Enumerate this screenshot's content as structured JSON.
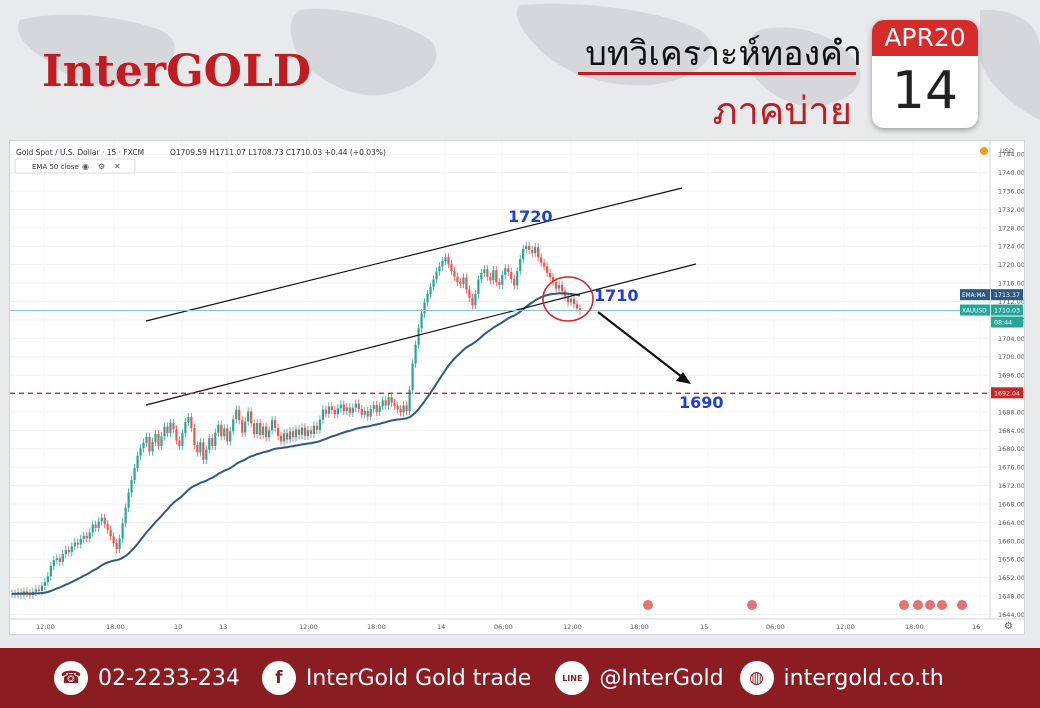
{
  "header": {
    "logo": "InterGOLD",
    "title": "บทวิเคราะห์ทองคำ",
    "subtitle": "ภาคบ่าย",
    "calendar_month": "APR20",
    "calendar_day": "14"
  },
  "chart_header": {
    "symbol": "Gold Spot / U.S. Dollar · 15 · FXCM",
    "ohlc": "O1709.59 H1711.07 L1708.73 C1710.03 +0.44 (+0.03%)",
    "indicator": "EMA 50 close"
  },
  "annotations": {
    "high_label": "1720",
    "mid_label": "1710",
    "target_label": "1690"
  },
  "chart_data": {
    "type": "candlestick",
    "symbol": "XAUUSD",
    "timeframe": "15",
    "price_axis": {
      "ticks": [
        "1744.00",
        "1740.00",
        "1736.00",
        "1732.00",
        "1728.00",
        "1724.00",
        "1720.00",
        "1716.00",
        "1712.00",
        "1708.00",
        "1704.00",
        "1700.00",
        "1696.00",
        "1692.00",
        "1688.00",
        "1684.00",
        "1680.00",
        "1676.00",
        "1672.00",
        "1668.00",
        "1664.00",
        "1660.00",
        "1656.00",
        "1652.00",
        "1648.00",
        "1644.00"
      ],
      "unit": "USD",
      "ylim": [
        1643,
        1746
      ]
    },
    "time_axis": {
      "ticks": [
        "12:00",
        "18:00",
        "10",
        "13",
        "12:00",
        "18:00",
        "14",
        "06:00",
        "12:00",
        "18:00",
        "15",
        "06:00",
        "12:00",
        "18:00",
        "16"
      ]
    },
    "price_tags": [
      {
        "label": "EMA:MA",
        "value": "1713.37",
        "color": "#2c5a86"
      },
      {
        "label": "XAUUSD",
        "value": "1710.03",
        "color": "#26a69a"
      },
      {
        "label": "",
        "value": "08:44",
        "color": "#26a69a"
      },
      {
        "label": "",
        "value": "1692.04",
        "color": "#c62828"
      }
    ],
    "levels": {
      "dashed_target": 1692.04,
      "current": 1710.03
    },
    "candles_close": [
      1648.5,
      1648.4,
      1648.8,
      1648.3,
      1649.0,
      1648.6,
      1648.2,
      1648.9,
      1649.4,
      1649.1,
      1650.2,
      1651.0,
      1652.3,
      1654.5,
      1655.8,
      1656.2,
      1655.4,
      1657.1,
      1658.0,
      1657.5,
      1658.8,
      1659.6,
      1659.2,
      1660.4,
      1661.1,
      1660.5,
      1661.8,
      1663.5,
      1662.8,
      1664.2,
      1665.0,
      1663.6,
      1662.4,
      1661.0,
      1659.5,
      1658.2,
      1660.5,
      1663.8,
      1667.2,
      1670.5,
      1673.2,
      1675.8,
      1678.5,
      1680.1,
      1681.3,
      1682.6,
      1679.4,
      1681.5,
      1683.2,
      1680.6,
      1682.7,
      1684.8,
      1683.4,
      1685.6,
      1684.2,
      1681.8,
      1680.6,
      1683.4,
      1685.8,
      1686.9,
      1684.5,
      1680.8,
      1679.2,
      1681.4,
      1677.6,
      1679.8,
      1682.3,
      1680.6,
      1683.5,
      1685.2,
      1682.7,
      1684.4,
      1681.6,
      1683.8,
      1686.4,
      1688.5,
      1686.2,
      1683.5,
      1685.9,
      1688.1,
      1685.5,
      1683.2,
      1685.6,
      1683.0,
      1684.8,
      1682.5,
      1684.0,
      1686.2,
      1684.5,
      1682.8,
      1681.6,
      1683.4,
      1682.0,
      1683.8,
      1682.5,
      1684.2,
      1683.0,
      1684.6,
      1682.8,
      1684.0,
      1683.2,
      1685.0,
      1684.1,
      1686.3,
      1688.5,
      1687.6,
      1689.2,
      1688.4,
      1687.5,
      1688.8,
      1689.6,
      1688.2,
      1689.0,
      1687.8,
      1688.9,
      1689.8,
      1688.6,
      1687.4,
      1688.2,
      1687.0,
      1688.6,
      1689.5,
      1688.0,
      1689.2,
      1690.5,
      1689.4,
      1691.2,
      1690.0,
      1689.3,
      1688.6,
      1687.9,
      1689.4,
      1688.2,
      1692.8,
      1698.5,
      1702.6,
      1706.2,
      1709.4,
      1711.8,
      1713.6,
      1715.2,
      1716.8,
      1718.5,
      1719.6,
      1720.8,
      1721.6,
      1720.2,
      1718.6,
      1717.4,
      1716.2,
      1715.8,
      1717.2,
      1714.6,
      1712.8,
      1711.2,
      1713.6,
      1716.8,
      1718.2,
      1719.0,
      1717.4,
      1716.6,
      1718.8,
      1716.2,
      1715.6,
      1717.8,
      1719.2,
      1718.4,
      1716.9,
      1715.5,
      1718.6,
      1721.2,
      1723.4,
      1724.1,
      1723.2,
      1722.5,
      1723.8,
      1721.6,
      1720.4,
      1719.6,
      1718.2,
      1717.3,
      1716.2,
      1714.8,
      1715.6,
      1714.2,
      1713.1,
      1711.8,
      1712.6,
      1711.4,
      1710.5,
      1710.0
    ]
  },
  "footer": {
    "phone": "02-2233-234",
    "facebook": "InterGold Gold trade",
    "line": "@InterGold",
    "web": "intergold.co.th",
    "line_icon_text": "LINE"
  }
}
